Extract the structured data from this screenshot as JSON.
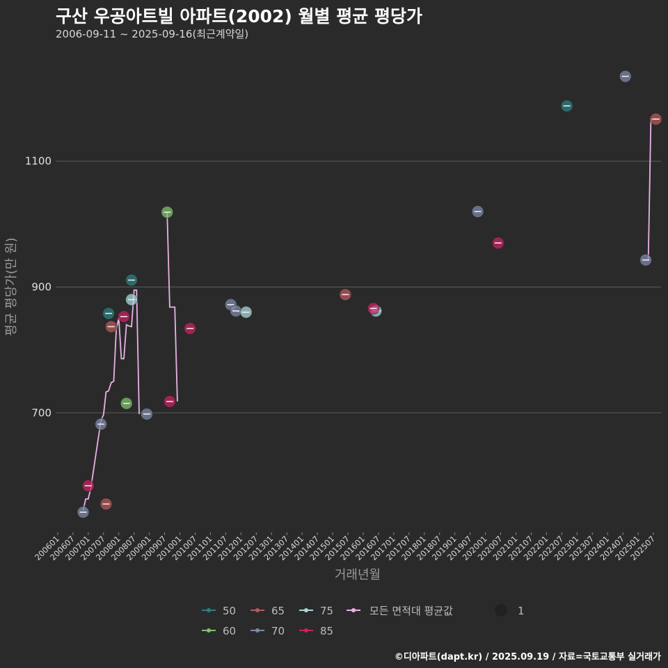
{
  "title": "구산 우공아트빌 아파트(2002) 월별 평균 평당가",
  "subtitle": "2006-09-11 ~ 2025-09-16(최근계약일)",
  "footer": "©디아파트(dapt.kr) / 2025.09.19 / 자료=국토교통부 실거래가",
  "colors": {
    "background": "#2b2a2b",
    "grid": "#5c5c5c",
    "avg_line": "#e9b3e6",
    "series": {
      "50": "#2f7f7f",
      "60": "#7fc26d",
      "65": "#b55a5a",
      "70": "#7e8aa8",
      "75": "#a9dada",
      "85": "#c42461"
    }
  },
  "chart_data": {
    "type": "scatter",
    "title": "구산 우공아트빌 아파트(2002) 월별 평균 평당가",
    "subtitle": "2006-09-11 ~ 2025-09-16(최근계약일)",
    "xlabel": "거래년월",
    "ylabel": "평균 평당가(만 원)",
    "x_ticks": [
      "200601",
      "200607",
      "200701",
      "200707",
      "200801",
      "200807",
      "200901",
      "200907",
      "201001",
      "201007",
      "201101",
      "201107",
      "201201",
      "201207",
      "201301",
      "201307",
      "201401",
      "201407",
      "201501",
      "201507",
      "201601",
      "201607",
      "201701",
      "201707",
      "201801",
      "201807",
      "201901",
      "201907",
      "202001",
      "202007",
      "202101",
      "202107",
      "202201",
      "202207",
      "202301",
      "202307",
      "202401",
      "202407",
      "202501",
      "202507"
    ],
    "y_ticks": [
      700,
      900,
      1100
    ],
    "xlim": [
      "200601",
      "202510"
    ],
    "ylim": [
      510,
      1290
    ],
    "grid": true,
    "legend_position": "bottom",
    "legend_size_label": "1",
    "legend_avg_label": "모든 면적대 평균값",
    "series": [
      {
        "name": "50",
        "points": [
          {
            "x": "2007-09",
            "y": 858
          },
          {
            "x": "2008-06",
            "y": 911
          },
          {
            "x": "2022-09",
            "y": 1188
          }
        ]
      },
      {
        "name": "60",
        "points": [
          {
            "x": "2008-04",
            "y": 715
          },
          {
            "x": "2009-08",
            "y": 1019
          }
        ]
      },
      {
        "name": "65",
        "points": [
          {
            "x": "2007-08",
            "y": 555
          },
          {
            "x": "2007-10",
            "y": 837
          },
          {
            "x": "2015-06",
            "y": 888
          },
          {
            "x": "2025-08",
            "y": 1167
          }
        ]
      },
      {
        "name": "70",
        "points": [
          {
            "x": "2006-11",
            "y": 542
          },
          {
            "x": "2007-06",
            "y": 682
          },
          {
            "x": "2008-12",
            "y": 698
          },
          {
            "x": "2011-09",
            "y": 872
          },
          {
            "x": "2011-11",
            "y": 862
          },
          {
            "x": "2019-10",
            "y": 1020
          },
          {
            "x": "2024-08",
            "y": 1235
          },
          {
            "x": "2025-04",
            "y": 943
          }
        ]
      },
      {
        "name": "75",
        "points": [
          {
            "x": "2008-06",
            "y": 880
          },
          {
            "x": "2012-03",
            "y": 860
          },
          {
            "x": "2016-06",
            "y": 862
          }
        ]
      },
      {
        "name": "85",
        "points": [
          {
            "x": "2007-01",
            "y": 584
          },
          {
            "x": "2008-03",
            "y": 853
          },
          {
            "x": "2009-09",
            "y": 718
          },
          {
            "x": "2010-05",
            "y": 834
          },
          {
            "x": "2016-05",
            "y": 866
          },
          {
            "x": "2020-06",
            "y": 970
          }
        ]
      }
    ],
    "average": [
      {
        "x": "2006-11",
        "y": 545
      },
      {
        "x": "2006-12",
        "y": 563
      },
      {
        "x": "2007-01",
        "y": 563
      },
      {
        "x": "2007-02",
        "y": 580
      },
      {
        "x": "2007-06",
        "y": 688
      },
      {
        "x": "2007-07",
        "y": 697
      },
      {
        "x": "2007-08",
        "y": 733
      },
      {
        "x": "2007-09",
        "y": 735
      },
      {
        "x": "2007-10",
        "y": 748
      },
      {
        "x": "2007-11",
        "y": 750
      },
      {
        "x": "2007-12",
        "y": 832
      },
      {
        "x": "2008-01",
        "y": 851
      },
      {
        "x": "2008-02",
        "y": 786
      },
      {
        "x": "2008-03",
        "y": 786
      },
      {
        "x": "2008-04",
        "y": 840
      },
      {
        "x": "2008-05",
        "y": 838
      },
      {
        "x": "2008-06",
        "y": 837
      },
      {
        "x": "2008-07",
        "y": 895
      },
      {
        "x": "2008-08",
        "y": 895
      },
      {
        "x": "2008-09",
        "y": 698
      },
      {
        "x": "2009-08",
        "y": 1018
      },
      {
        "x": "2009-09",
        "y": 868
      },
      {
        "x": "2009-10",
        "y": 868
      },
      {
        "x": "2009-11",
        "y": 868
      },
      {
        "x": "2009-12",
        "y": 718
      },
      {
        "x": "2011-09",
        "y": 870
      },
      {
        "x": "2011-10",
        "y": 862
      },
      {
        "x": "2011-11",
        "y": 862
      },
      {
        "x": "2012-01",
        "y": 860
      },
      {
        "x": "2012-03",
        "y": 860
      },
      {
        "x": "2015-05",
        "y": 888
      },
      {
        "x": "2015-07",
        "y": 888
      },
      {
        "x": "2016-04",
        "y": 866
      },
      {
        "x": "2016-06",
        "y": 862
      },
      {
        "x": "2016-08",
        "y": 862
      },
      {
        "x": "2025-03",
        "y": 943
      },
      {
        "x": "2025-05",
        "y": 943
      },
      {
        "x": "2025-06",
        "y": 1167
      },
      {
        "x": "2025-08",
        "y": 1167
      }
    ]
  }
}
